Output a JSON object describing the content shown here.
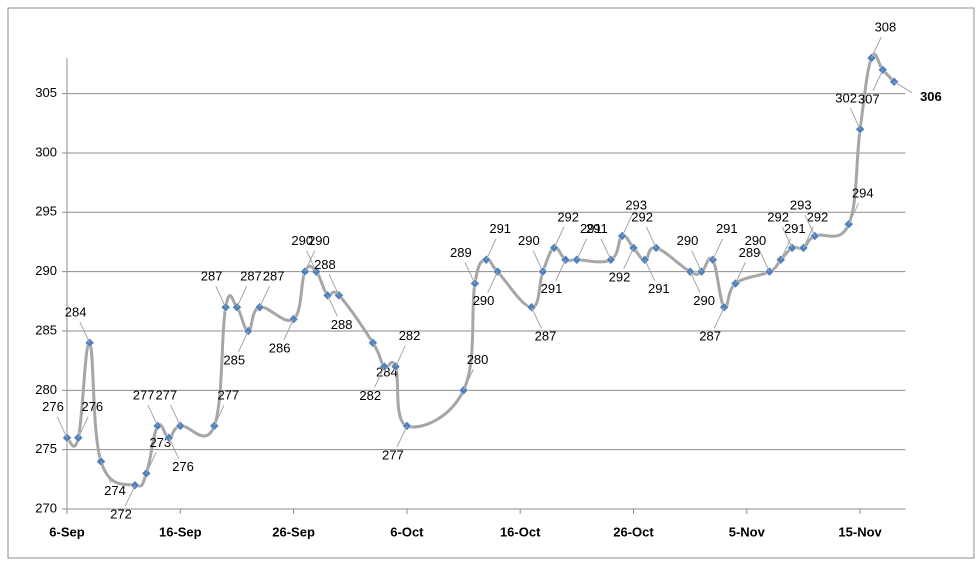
{
  "chart_data": {
    "type": "line",
    "x": [
      "6-Sep",
      "7-Sep",
      "8-Sep",
      "9-Sep",
      "12-Sep",
      "13-Sep",
      "14-Sep",
      "15-Sep",
      "16-Sep",
      "19-Sep",
      "20-Sep",
      "21-Sep",
      "22-Sep",
      "23-Sep",
      "26-Sep",
      "27-Sep",
      "28-Sep",
      "29-Sep",
      "30-Sep",
      "3-Oct",
      "4-Oct",
      "5-Oct",
      "6-Oct",
      "11-Oct",
      "12-Oct",
      "13-Oct",
      "14-Oct",
      "17-Oct",
      "18-Oct",
      "19-Oct",
      "20-Oct",
      "21-Oct",
      "24-Oct",
      "25-Oct",
      "26-Oct",
      "27-Oct",
      "28-Oct",
      "31-Oct",
      "1-Nov",
      "2-Nov",
      "3-Nov",
      "4-Nov",
      "7-Nov",
      "8-Nov",
      "9-Nov",
      "10-Nov",
      "11-Nov",
      "14-Nov",
      "15-Nov",
      "16-Nov",
      "17-Nov",
      "18-Nov"
    ],
    "values": [
      276,
      276,
      284,
      274,
      272,
      273,
      277,
      276,
      277,
      277,
      287,
      287,
      285,
      287,
      286,
      290,
      290,
      288,
      288,
      284,
      282,
      282,
      277,
      280,
      289,
      291,
      290,
      287,
      290,
      292,
      291,
      291,
      291,
      293,
      292,
      291,
      292,
      290,
      290,
      291,
      287,
      289,
      290,
      291,
      292,
      292,
      293,
      294,
      302,
      308,
      307,
      306
    ],
    "color": "#a6a6a6",
    "marker_color": "#4f81bd",
    "xlim": [
      "6-Sep",
      "19-Nov"
    ],
    "xticks": [
      "6-Sep",
      "16-Sep",
      "26-Sep",
      "6-Oct",
      "16-Oct",
      "26-Oct",
      "5-Nov",
      "15-Nov"
    ],
    "ylim": [
      270,
      308
    ],
    "yticks": [
      270,
      275,
      280,
      285,
      290,
      295,
      300,
      305
    ],
    "grid": true
  }
}
